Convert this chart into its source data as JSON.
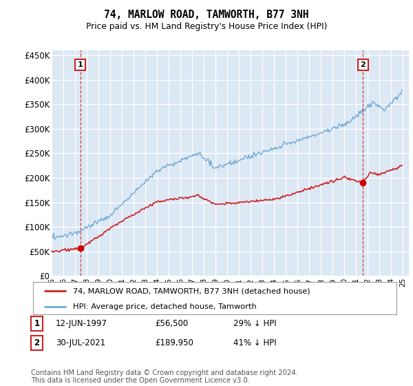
{
  "title": "74, MARLOW ROAD, TAMWORTH, B77 3NH",
  "subtitle": "Price paid vs. HM Land Registry's House Price Index (HPI)",
  "ylim": [
    0,
    460000
  ],
  "yticks": [
    0,
    50000,
    100000,
    150000,
    200000,
    250000,
    300000,
    350000,
    400000,
    450000
  ],
  "ytick_labels": [
    "£0",
    "£50K",
    "£100K",
    "£150K",
    "£200K",
    "£250K",
    "£300K",
    "£350K",
    "£400K",
    "£450K"
  ],
  "hpi_color": "#6fa8d4",
  "price_color": "#cc2222",
  "marker_color": "#cc0000",
  "legend_label1": "74, MARLOW ROAD, TAMWORTH, B77 3NH (detached house)",
  "legend_label2": "HPI: Average price, detached house, Tamworth",
  "annotation1_num": "1",
  "annotation1_date": "12-JUN-1997",
  "annotation1_price": "£56,500",
  "annotation1_hpi": "29% ↓ HPI",
  "annotation2_num": "2",
  "annotation2_date": "30-JUL-2021",
  "annotation2_price": "£189,950",
  "annotation2_hpi": "41% ↓ HPI",
  "footer": "Contains HM Land Registry data © Crown copyright and database right 2024.\nThis data is licensed under the Open Government Licence v3.0.",
  "background_color": "#dde8f5",
  "grid_color": "#ffffff"
}
